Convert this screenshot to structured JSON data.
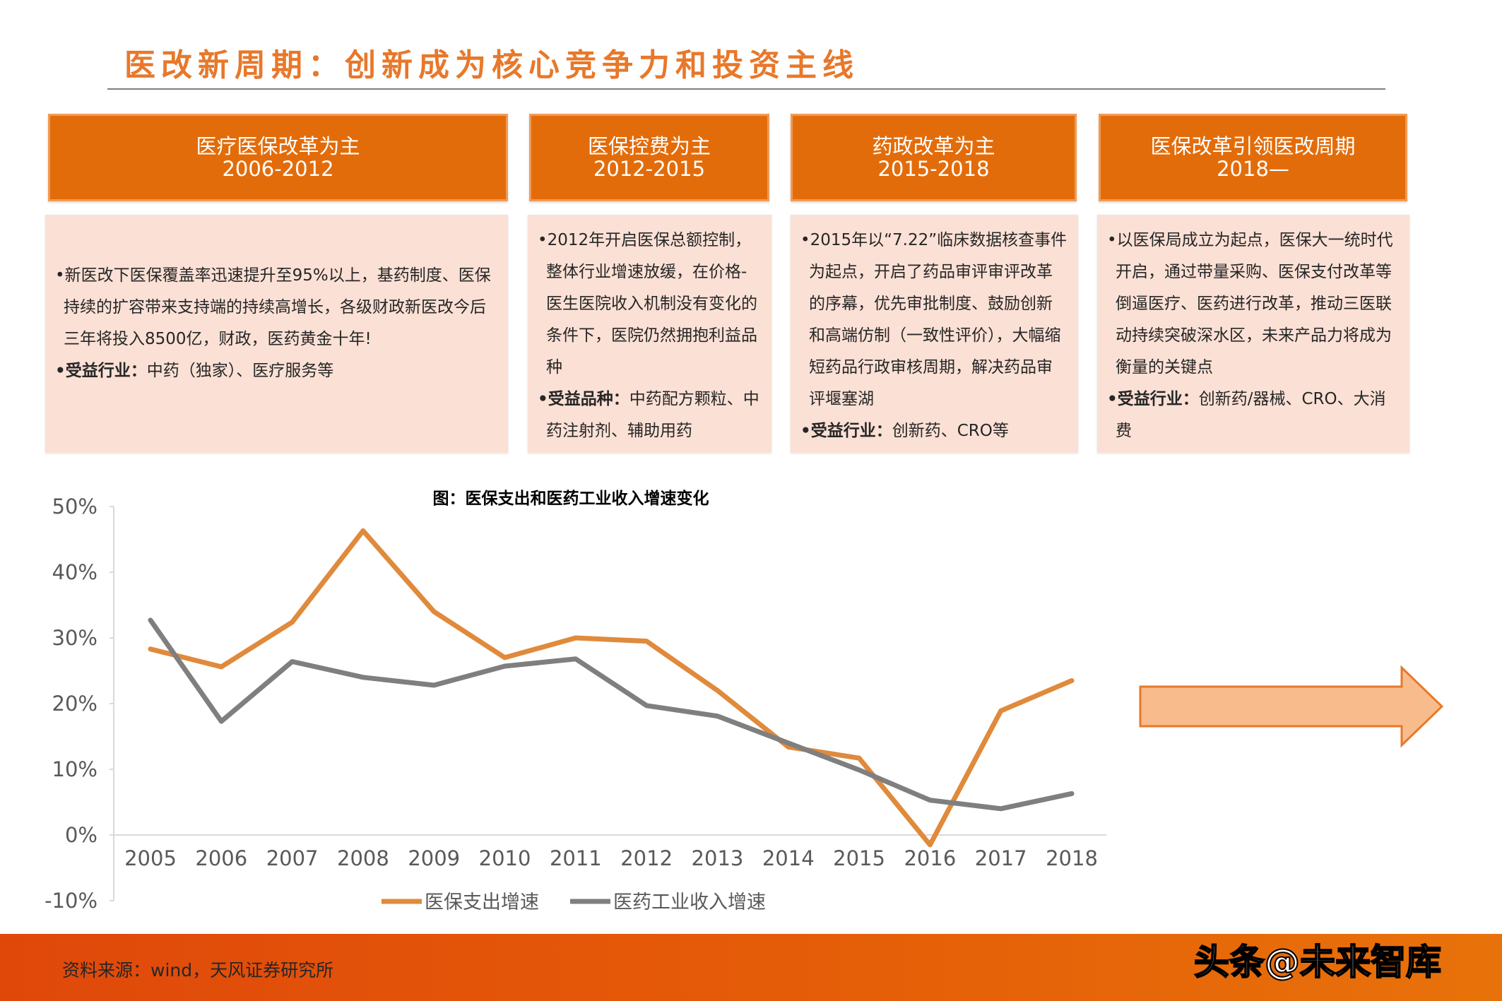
{
  "title": "医改新周期：创新成为核心竞争力和投资主线",
  "phases": [
    {
      "title": "医疗医保改革为主",
      "period": "2006-2012",
      "lines": [
        {
          "label": "",
          "text": "•新医改下医保覆盖率迅速提升至95%以上，基药制度、医保持续的扩容带来支持端的持续高增长，各级财政新医改今后三年将投入8500亿，财政，医药黄金十年!"
        },
        {
          "label": "•受益行业：",
          "text": "中药（独家）、医疗服务等"
        }
      ]
    },
    {
      "title": "医保控费为主",
      "period": "2012-2015",
      "lines": [
        {
          "label": "",
          "text": "•2012年开启医保总额控制，整体行业增速放缓，在价格-医生医院收入机制没有变化的条件下，医院仍然拥抱利益品种"
        },
        {
          "label": "•受益品种：",
          "text": "中药配方颗粒、中药注射剂、辅助用药"
        }
      ]
    },
    {
      "title": "药政改革为主",
      "period": "2015-2018",
      "lines": [
        {
          "label": "",
          "text": "•2015年以“7.22”临床数据核查事件为起点，开启了药品审评审评改革的序幕，优先审批制度、鼓励创新和高端仿制（一致性评价），大幅缩短药品行政审核周期，解决药品审评堰塞湖"
        },
        {
          "label": "•受益行业：",
          "text": "创新药、CRO等"
        }
      ]
    },
    {
      "title": "医保改革引领医改周期",
      "period": "2018—",
      "lines": [
        {
          "label": "",
          "text": "•以医保局成立为起点，医保大一统时代开启，通过带量采购、医保支付改革等倒逼医疗、医药进行改革，推动三医联动持续突破深水区，未来产品力将成为衡量的关键点"
        },
        {
          "label": "•受益行业：",
          "text": "创新药/器械、CRO、大消费"
        }
      ]
    }
  ],
  "chart_data": {
    "type": "line",
    "title": "图：医保支出和医药工业收入增速变化",
    "categories": [
      "2005",
      "2006",
      "2007",
      "2008",
      "2009",
      "2010",
      "2011",
      "2012",
      "2013",
      "2014",
      "2015",
      "2016",
      "2017",
      "2018"
    ],
    "y_ticks": [
      "50%",
      "40%",
      "30%",
      "20%",
      "10%",
      "0%",
      "-10%"
    ],
    "ylim": [
      -10,
      50
    ],
    "y_unit": "%",
    "grid": false,
    "legend_position": "bottom",
    "series": [
      {
        "name": "医保支出增速",
        "color": "#e08a3c",
        "values": [
          28.3,
          25.6,
          32.4,
          46.3,
          34.0,
          27.0,
          30.0,
          29.5,
          22.0,
          13.4,
          11.7,
          -1.5,
          18.9,
          23.5
        ]
      },
      {
        "name": "医药工业收入增速",
        "color": "#7f7f7f",
        "values": [
          32.7,
          17.3,
          26.4,
          24.0,
          22.8,
          25.7,
          26.8,
          19.7,
          18.1,
          14.0,
          9.9,
          5.3,
          4.0,
          6.3
        ]
      }
    ]
  },
  "arrow_icon": "right-arrow",
  "colors": {
    "accent": "#e36c0a",
    "box_fill": "#fbe0d5",
    "arrow_fill": "#f8bc8c"
  },
  "footer": {
    "source": "资料来源：wind，天风证券研究所",
    "watermark": "头条@未来智库"
  }
}
